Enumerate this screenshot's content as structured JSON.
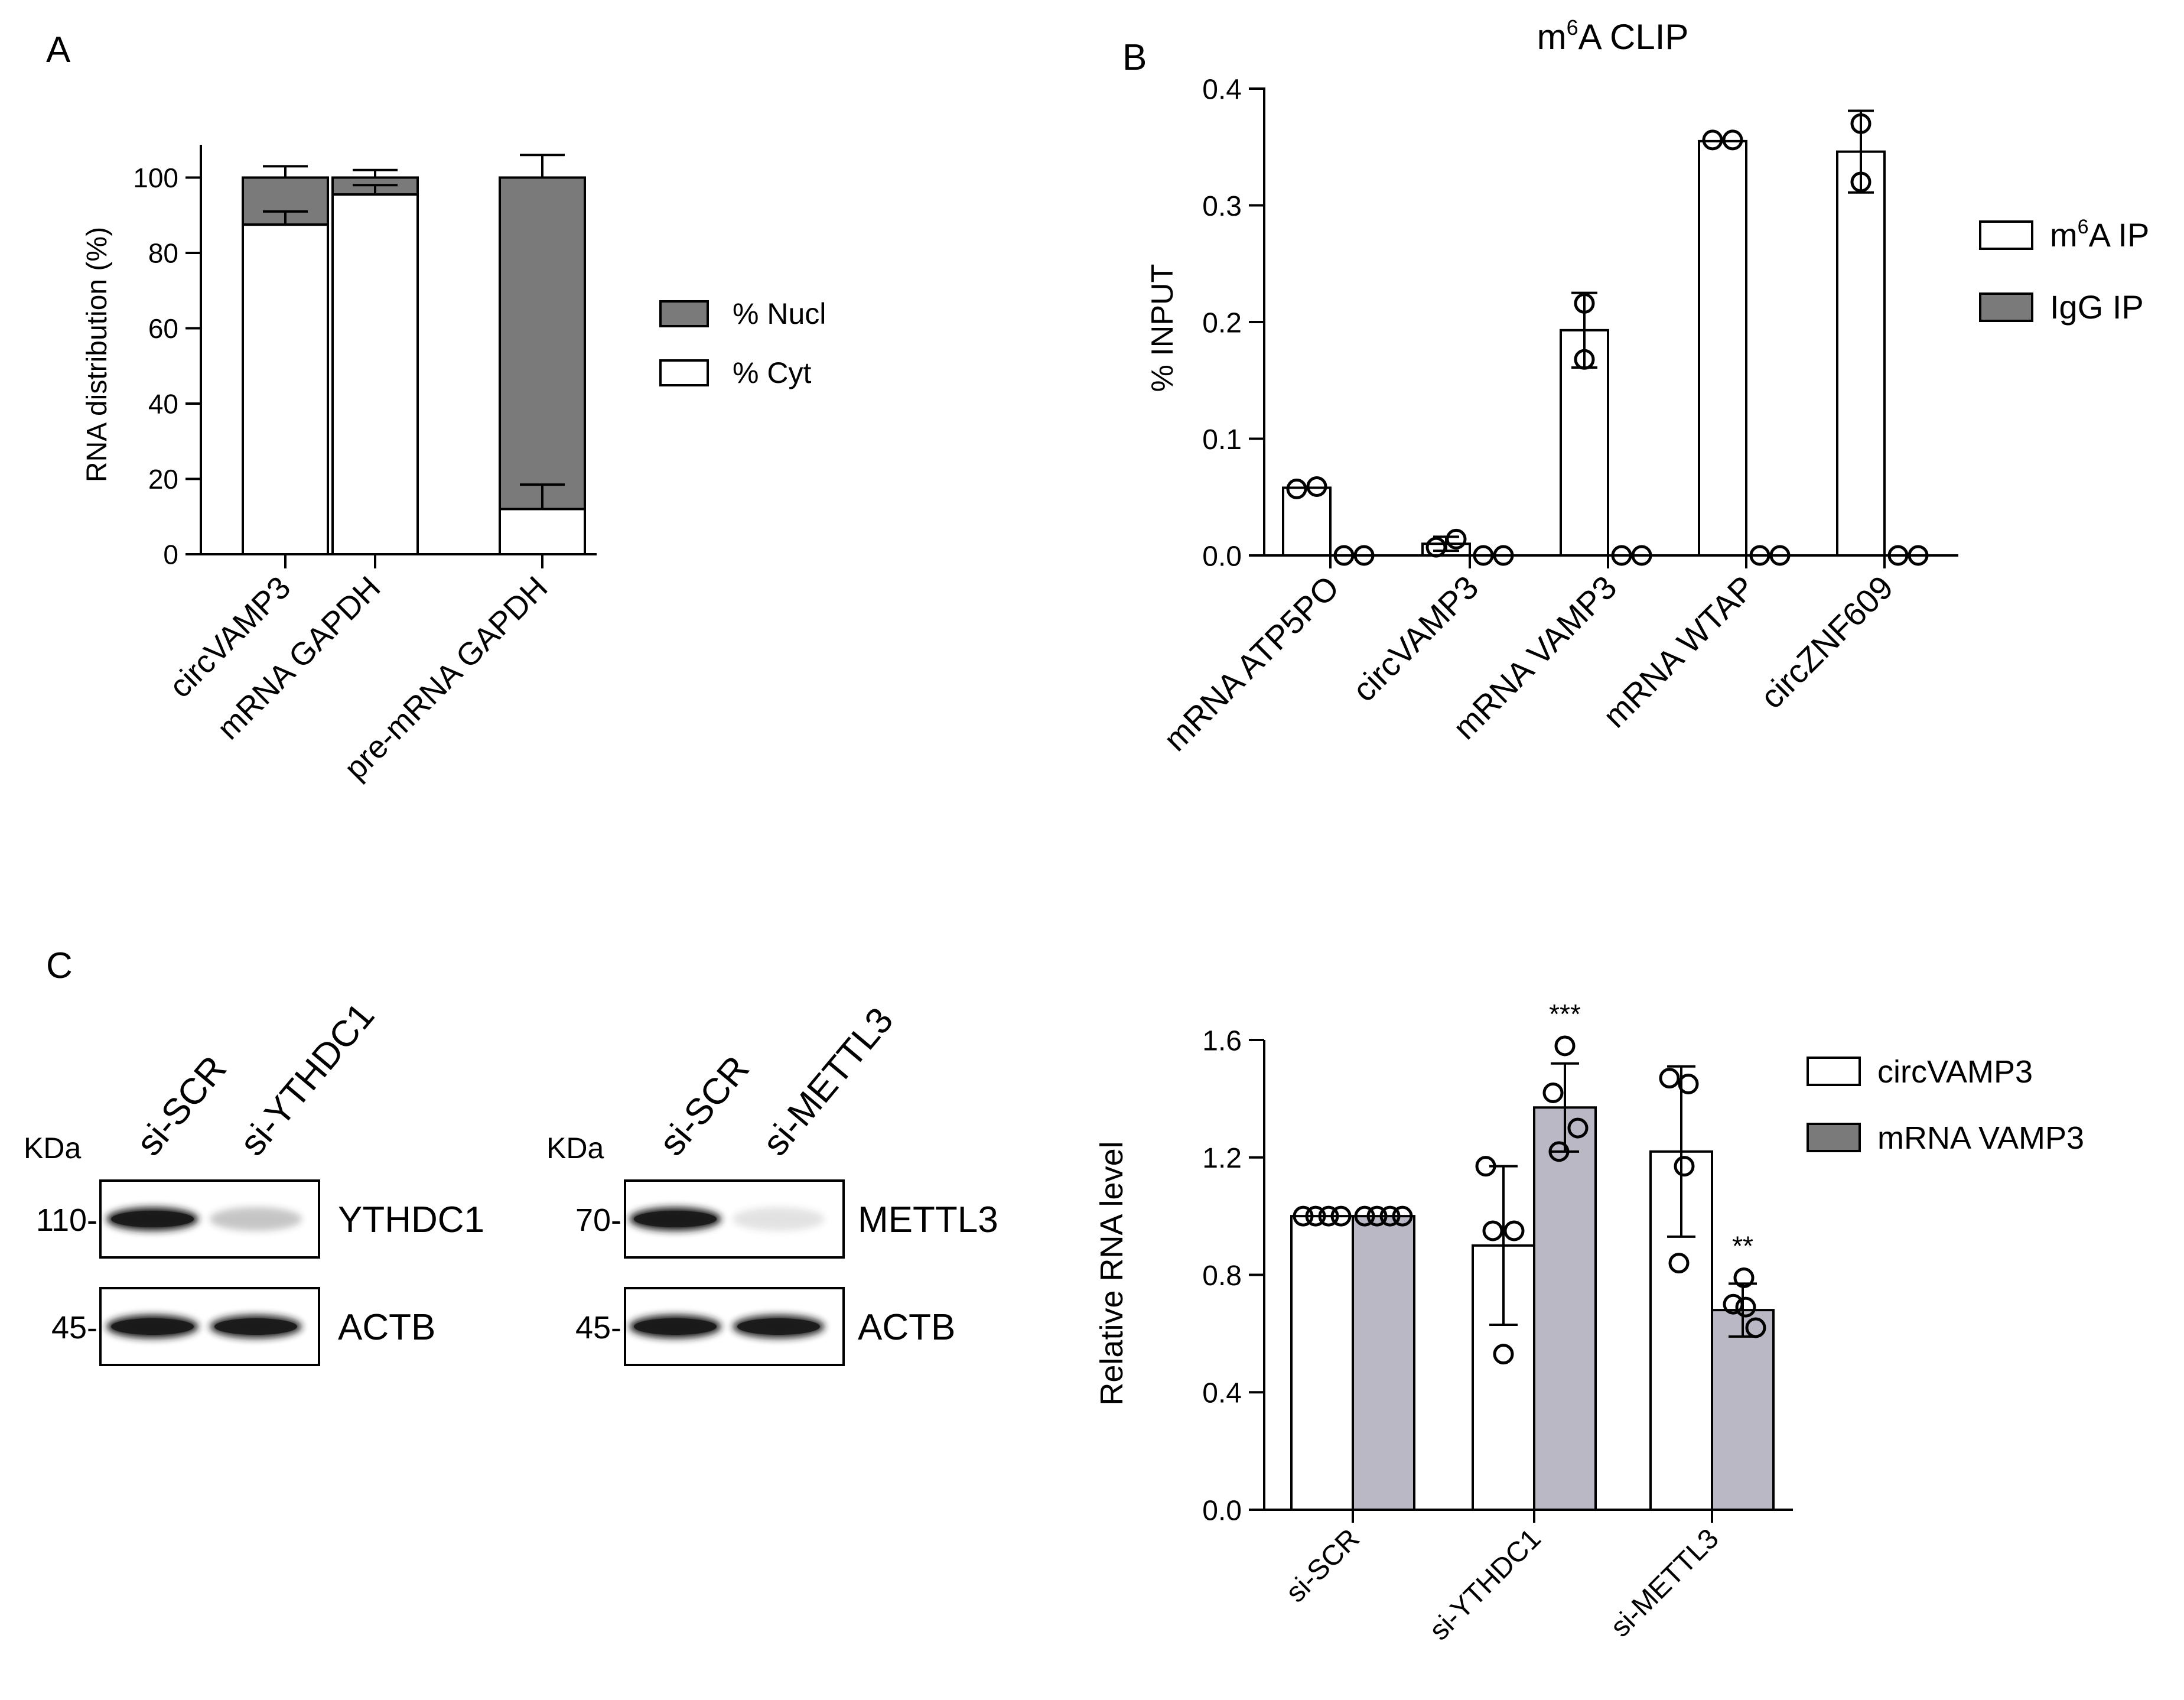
{
  "panel_labels": {
    "A": "A",
    "B": "B",
    "C": "C"
  },
  "colors": {
    "dark_gray": "#7a7a7a",
    "light_gray": "#b9b8c4",
    "white": "#ffffff",
    "black": "#000000",
    "blot_band": "#1a1a1a"
  },
  "chart_data": [
    {
      "id": "A",
      "type": "bar",
      "stacked": true,
      "title": "",
      "ylabel": "RNA distribution (%)",
      "xlabel": "",
      "ylim": [
        0,
        110
      ],
      "yticks": [
        0,
        20,
        40,
        60,
        80,
        100
      ],
      "categories": [
        "circVAMP3",
        "mRNA  GAPDH",
        "pre-mRNA  GAPDH"
      ],
      "series": [
        {
          "name": "% Cyt",
          "values": [
            87.5,
            95.5,
            12
          ],
          "error": [
            3.5,
            2.5,
            6.5
          ]
        },
        {
          "name": "% Nucl",
          "values": [
            12.5,
            4.5,
            88
          ],
          "error": [
            3,
            2,
            6
          ]
        }
      ],
      "legend": [
        {
          "label": "% Nucl",
          "color": "#7a7a7a"
        },
        {
          "label": "% Cyt",
          "color": "#ffffff"
        }
      ],
      "legend_position": "right"
    },
    {
      "id": "B",
      "type": "bar",
      "title_main": "m",
      "title_sup": "6",
      "title_rest": "A CLIP",
      "ylabel": "% INPUT",
      "xlabel": "",
      "ylim": [
        0,
        0.4
      ],
      "yticks": [
        0.0,
        0.1,
        0.2,
        0.3,
        0.4
      ],
      "ytick_labels": [
        "0.0",
        "0.1",
        "0.2",
        "0.3",
        "0.4"
      ],
      "categories": [
        "mRNA  ATP5PO",
        "circVAMP3",
        "mRNA  VAMP3",
        "mRNA  WTAP",
        "circZNF609"
      ],
      "series": [
        {
          "name": "m6A IP",
          "values": [
            0.058,
            0.01,
            0.193,
            0.355,
            0.346
          ],
          "error": [
            0.003,
            0.006,
            0.032,
            0.002,
            0.035
          ],
          "points": [
            [
              0.057,
              0.059
            ],
            [
              0.007,
              0.014
            ],
            [
              0.216,
              0.168
            ],
            [
              0.356,
              0.356
            ],
            [
              0.37,
              0.32
            ]
          ]
        },
        {
          "name": "IgG IP",
          "values": [
            0.0,
            0.0,
            0.0,
            0.0,
            0.0
          ],
          "error": [
            0,
            0,
            0,
            0,
            0
          ],
          "points": [
            [
              0,
              0
            ],
            [
              0,
              0
            ],
            [
              0,
              0
            ],
            [
              0,
              0
            ],
            [
              0,
              0
            ]
          ]
        }
      ],
      "legend": [
        {
          "label_main": "m",
          "label_sup": "6",
          "label_rest": "A  IP",
          "color": "#ffffff"
        },
        {
          "label_main": "IgG  IP",
          "label_sup": "",
          "label_rest": "",
          "color": "#7a7a7a"
        }
      ],
      "legend_position": "right"
    },
    {
      "id": "C-chart",
      "type": "bar",
      "title": "",
      "ylabel": "Relative RNA level",
      "xlabel": "",
      "ylim": [
        0,
        1.6
      ],
      "yticks": [
        0.0,
        0.4,
        0.8,
        1.2,
        1.6
      ],
      "ytick_labels": [
        "0.0",
        "0.4",
        "0.8",
        "1.2",
        "1.6"
      ],
      "categories": [
        "si-SCR",
        "si-YTHDC1",
        "si-METTL3"
      ],
      "series": [
        {
          "name": "circVAMP3",
          "values": [
            1.0,
            0.9,
            1.22
          ],
          "error": [
            0.0,
            0.27,
            0.29
          ],
          "points": [
            [
              1.0,
              1.0,
              1.0,
              1.0
            ],
            [
              1.17,
              0.95,
              0.95,
              0.53
            ],
            [
              1.47,
              1.45,
              1.17,
              0.84
            ]
          ]
        },
        {
          "name": "mRNA  VAMP3",
          "values": [
            1.0,
            1.37,
            0.68
          ],
          "error": [
            0.0,
            0.15,
            0.09
          ],
          "points": [
            [
              1.0,
              1.0,
              1.0,
              1.0
            ],
            [
              1.58,
              1.42,
              1.3,
              1.22
            ],
            [
              0.79,
              0.7,
              0.62,
              0.69
            ]
          ]
        }
      ],
      "significance": [
        "",
        "***",
        "**"
      ],
      "significance_series": [
        1,
        1,
        1
      ],
      "legend": [
        {
          "label": "circVAMP3",
          "color": "#ffffff"
        },
        {
          "label": "mRNA  VAMP3",
          "color": "#7a7a7a"
        }
      ],
      "legend_position": "right"
    }
  ],
  "western_blot": {
    "left": {
      "kda_label": "KDa",
      "lanes": [
        "si-SCR",
        "si-YTHDC1"
      ],
      "rows": [
        {
          "marker": "110-",
          "protein": "YTHDC1"
        },
        {
          "marker": "45-",
          "protein": "ACTB"
        }
      ]
    },
    "right": {
      "kda_label": "KDa",
      "lanes": [
        "si-SCR",
        "si-METTL3"
      ],
      "rows": [
        {
          "marker": "70-",
          "protein": "METTL3"
        },
        {
          "marker": "45-",
          "protein": "ACTB"
        }
      ]
    }
  }
}
